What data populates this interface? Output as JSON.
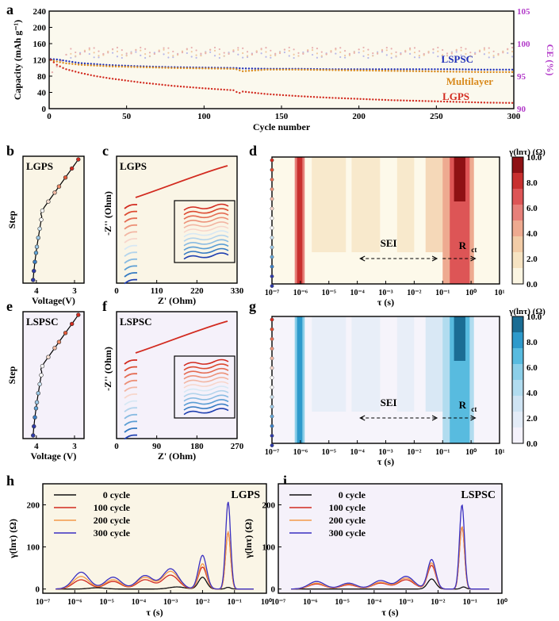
{
  "panel_letters": [
    "a",
    "b",
    "c",
    "d",
    "e",
    "f",
    "g",
    "h",
    "i"
  ],
  "chart_data": [
    {
      "panel": "a",
      "type": "scatter",
      "xlabel": "Cycle number",
      "ylabel": "Capacity (mAh g⁻¹)",
      "y2label": "CE (%)",
      "xlim": [
        0,
        300
      ],
      "ylim": [
        0,
        240
      ],
      "y2lim": [
        90,
        105
      ],
      "xticks": [
        "0",
        "50",
        "100",
        "150",
        "200",
        "250",
        "300"
      ],
      "yticks": [
        "0",
        "40",
        "80",
        "120",
        "160",
        "200",
        "240"
      ],
      "y2ticks": [
        "90",
        "95",
        "100",
        "105"
      ],
      "series": [
        {
          "name": "LSPSC",
          "color": "#1f2fb8",
          "x": [
            1,
            5,
            10,
            20,
            40,
            60,
            80,
            100,
            120,
            125,
            140,
            160,
            180,
            200,
            220,
            240,
            260,
            280,
            300
          ],
          "y": [
            122,
            121,
            118,
            112,
            107,
            104,
            102,
            101,
            100,
            99,
            98,
            98,
            97,
            97,
            97,
            97,
            97,
            96,
            96
          ]
        },
        {
          "name": "Multilayer",
          "color": "#d98a1c",
          "x": [
            1,
            5,
            10,
            20,
            40,
            60,
            80,
            100,
            120,
            125,
            140,
            160,
            180,
            200,
            220,
            240,
            260,
            280,
            300
          ],
          "y": [
            120,
            116,
            112,
            108,
            104,
            102,
            100,
            99,
            98,
            92,
            96,
            96,
            95,
            94,
            93,
            92,
            91,
            90,
            90
          ]
        },
        {
          "name": "LGPS",
          "color": "#d22a1f",
          "x": [
            1,
            5,
            10,
            20,
            30,
            40,
            60,
            80,
            100,
            120,
            122,
            125,
            140,
            160,
            180,
            200,
            220,
            240,
            260,
            280,
            300
          ],
          "y": [
            120,
            108,
            98,
            88,
            80,
            74,
            64,
            56,
            50,
            45,
            37,
            42,
            36,
            31,
            27,
            24,
            21,
            19,
            17,
            15,
            14
          ]
        }
      ],
      "ce_series_note": "",
      "labels": [
        "LSPSC",
        "Multilayer",
        "LGPS"
      ]
    },
    {
      "panel": "b",
      "type": "line",
      "title": "LGPS",
      "xlabel": "Voltage(V)",
      "ylabel": "Step",
      "xticks": [
        "4",
        "3"
      ]
    },
    {
      "panel": "c",
      "type": "line",
      "title": "LGPS",
      "xlabel": "Z' (Ohm)",
      "ylabel": "-Z'' (Ohm)",
      "xlim": [
        0,
        330
      ],
      "xticks": [
        "0",
        "110",
        "220",
        "330"
      ]
    },
    {
      "panel": "d",
      "type": "heatmap",
      "xlabel": "τ (s)",
      "xticks": [
        "10⁻⁷",
        "10⁻⁶",
        "10⁻⁵",
        "10⁻⁴",
        "10⁻³",
        "10⁻²",
        "10⁻¹",
        "10⁰",
        "10¹"
      ],
      "colorbar_title": "γ(lnτ) (Ω)",
      "colorbar_ticks": [
        "0.0",
        "2.0",
        "4.0",
        "6.0",
        "8.0",
        "10.0"
      ],
      "annotations": [
        "SEI",
        "R",
        "ct"
      ]
    },
    {
      "panel": "e",
      "type": "line",
      "title": "LSPSC",
      "xlabel": "Voltage (V)",
      "ylabel": "Step",
      "xticks": [
        "4",
        "3"
      ]
    },
    {
      "panel": "f",
      "type": "line",
      "title": "LSPSC",
      "xlabel": "Z' (Ohm)",
      "ylabel": "-Z'' (Ohm)",
      "xlim": [
        0,
        270
      ],
      "xticks": [
        "0",
        "90",
        "180",
        "270"
      ]
    },
    {
      "panel": "g",
      "type": "heatmap",
      "xlabel": "τ (s)",
      "xticks": [
        "10⁻⁷",
        "10⁻⁶",
        "10⁻⁵",
        "10⁻⁴",
        "10⁻³",
        "10⁻²",
        "10⁻¹",
        "10⁰",
        "10¹"
      ],
      "colorbar_title": "γ(lnτ) (Ω)",
      "colorbar_ticks": [
        "0.0",
        "2.0",
        "4.0",
        "6.0",
        "8.0",
        "10.0"
      ],
      "annotations": [
        "SEI",
        "R",
        "ct"
      ]
    },
    {
      "panel": "h",
      "type": "line",
      "title": "LGPS",
      "xlabel": "τ (s)",
      "ylabel": "γ(lnτ) (Ω)",
      "ylim": [
        -10,
        250
      ],
      "yticks": [
        "0",
        "100",
        "200"
      ],
      "xticks": [
        "10⁻⁷",
        "10⁻⁶",
        "10⁻⁵",
        "10⁻⁴",
        "10⁻³",
        "10⁻²",
        "10⁻¹",
        "10⁰"
      ],
      "series": [
        {
          "name": "0 cycle",
          "color": "#111111",
          "peaks": [
            [
              -5.3,
              3
            ],
            [
              -2.8,
              5
            ],
            [
              -2.0,
              28
            ],
            [
              -1.2,
              4
            ]
          ]
        },
        {
          "name": "100 cycle",
          "color": "#d22a1f",
          "peaks": [
            [
              -5.8,
              22
            ],
            [
              -4.8,
              18
            ],
            [
              -3.8,
              22
            ],
            [
              -3.0,
              33
            ],
            [
              -2.0,
              52
            ],
            [
              -1.2,
              135
            ]
          ]
        },
        {
          "name": "200 cycle",
          "color": "#f39a4a",
          "peaks": [
            [
              -5.8,
              30
            ],
            [
              -4.8,
              22
            ],
            [
              -3.8,
              28
            ],
            [
              -3.0,
              42
            ],
            [
              -2.0,
              60
            ],
            [
              -1.2,
              135
            ]
          ]
        },
        {
          "name": "300 cycle",
          "color": "#3a2fc0",
          "peaks": [
            [
              -5.8,
              40
            ],
            [
              -4.8,
              28
            ],
            [
              -3.8,
              32
            ],
            [
              -3.0,
              48
            ],
            [
              -2.0,
              80
            ],
            [
              -1.2,
              207
            ]
          ]
        }
      ]
    },
    {
      "panel": "i",
      "type": "line",
      "title": "LSPSC",
      "xlabel": "τ (s)",
      "ylabel": "γ(lnτ) (Ω)",
      "ylim": [
        -10,
        250
      ],
      "yticks": [
        "0",
        "100",
        "200"
      ],
      "xticks": [
        "10⁻⁷",
        "10⁻⁶",
        "10⁻⁵",
        "10⁻⁴",
        "10⁻³",
        "10⁻²",
        "10⁻¹",
        "10⁰"
      ],
      "series": [
        {
          "name": "0 cycle",
          "color": "#111111",
          "peaks": [
            [
              -2.2,
              24
            ],
            [
              -1.2,
              5
            ]
          ]
        },
        {
          "name": "100 cycle",
          "color": "#d22a1f",
          "peaks": [
            [
              -5.8,
              12
            ],
            [
              -4.8,
              10
            ],
            [
              -3.8,
              14
            ],
            [
              -3.0,
              22
            ],
            [
              -2.2,
              56
            ],
            [
              -1.25,
              148
            ]
          ]
        },
        {
          "name": "200 cycle",
          "color": "#f39a4a",
          "peaks": [
            [
              -5.8,
              14
            ],
            [
              -4.8,
              12
            ],
            [
              -3.8,
              16
            ],
            [
              -3.0,
              26
            ],
            [
              -2.2,
              62
            ],
            [
              -1.25,
              148
            ]
          ]
        },
        {
          "name": "300 cycle",
          "color": "#3a2fc0",
          "peaks": [
            [
              -5.8,
              18
            ],
            [
              -4.8,
              14
            ],
            [
              -3.8,
              20
            ],
            [
              -3.0,
              30
            ],
            [
              -2.2,
              70
            ],
            [
              -1.25,
              200
            ]
          ]
        }
      ]
    }
  ]
}
